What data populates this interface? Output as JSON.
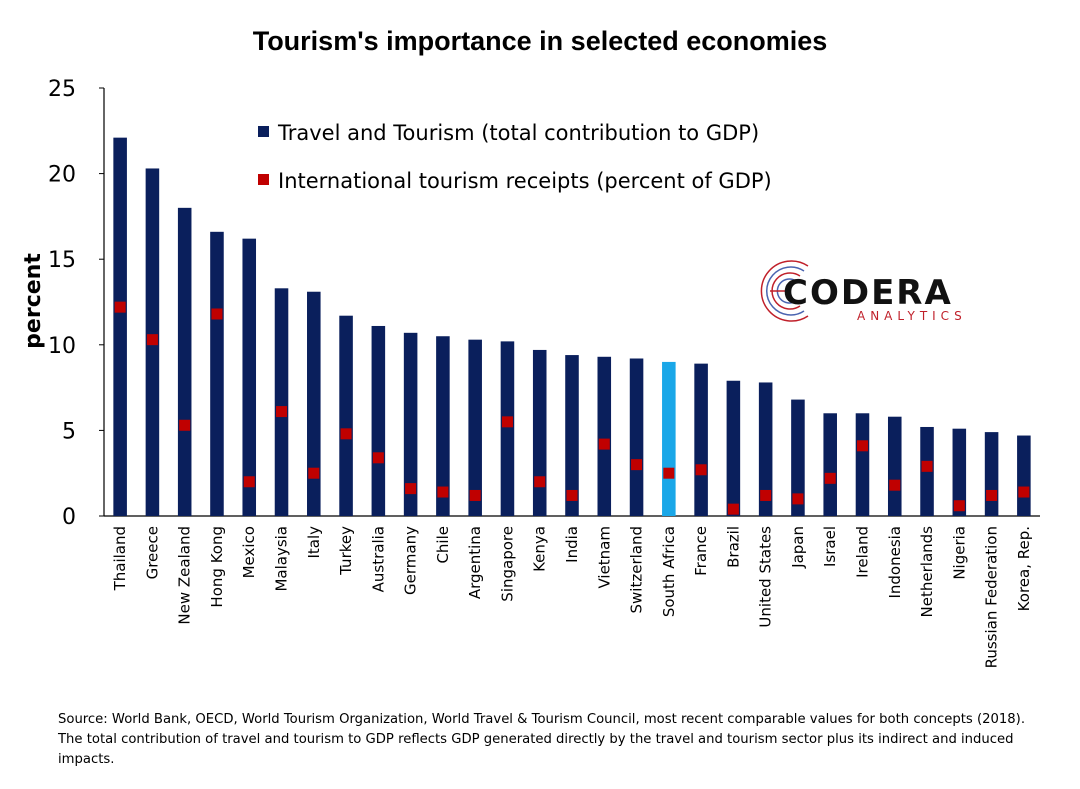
{
  "chart_data": {
    "type": "bar",
    "title": "Tourism's importance in selected economies",
    "xlabel": "",
    "ylabel": "percent",
    "ylim": [
      0,
      25
    ],
    "yticks": [
      0,
      5,
      10,
      15,
      20,
      25
    ],
    "grid": false,
    "legend_position": "top",
    "categories": [
      "Thailand",
      "Greece",
      "New Zealand",
      "Hong Kong",
      "Mexico",
      "Malaysia",
      "Italy",
      "Turkey",
      "Australia",
      "Germany",
      "Chile",
      "Argentina",
      "Singapore",
      "Kenya",
      "India",
      "Vietnam",
      "Switzerland",
      "South Africa",
      "France",
      "Brazil",
      "United States",
      "Japan",
      "Israel",
      "Ireland",
      "Indonesia",
      "Netherlands",
      "Nigeria",
      "Russian Federation",
      "Korea, Rep."
    ],
    "highlight_category": "South Africa",
    "series": [
      {
        "name": "Travel and Tourism (total contribution to GDP)",
        "kind": "bar",
        "color": "#0a1f5c",
        "highlight_color": "#1aa7e8",
        "values": [
          22.1,
          20.3,
          18.0,
          16.6,
          16.2,
          13.3,
          13.1,
          11.7,
          11.1,
          10.7,
          10.5,
          10.3,
          10.2,
          9.7,
          9.4,
          9.3,
          9.2,
          9.0,
          8.9,
          7.9,
          7.8,
          6.8,
          6.0,
          6.0,
          5.8,
          5.2,
          5.1,
          4.9,
          4.7
        ]
      },
      {
        "name": "International tourism receipts (percent of GDP)",
        "kind": "marker",
        "color": "#c00000",
        "values": [
          12.2,
          10.3,
          5.3,
          11.8,
          2.0,
          6.1,
          2.5,
          4.8,
          3.4,
          1.6,
          1.4,
          1.2,
          5.5,
          2.0,
          1.2,
          4.2,
          3.0,
          2.5,
          2.7,
          0.4,
          1.2,
          1.0,
          2.2,
          4.1,
          1.8,
          2.9,
          0.6,
          1.2,
          1.4
        ]
      }
    ]
  },
  "logo": {
    "word": "CODERA",
    "sub": "ANALYTICS",
    "color_primary": "#111111",
    "color_accent": "#c0202a"
  },
  "source_note": "Source: World Bank, OECD, World Tourism Organization, World Travel & Tourism Council, most recent comparable values for both concepts (2018). The total contribution of travel and tourism to GDP reflects GDP generated directly by the travel and tourism sector plus its indirect and induced impacts."
}
